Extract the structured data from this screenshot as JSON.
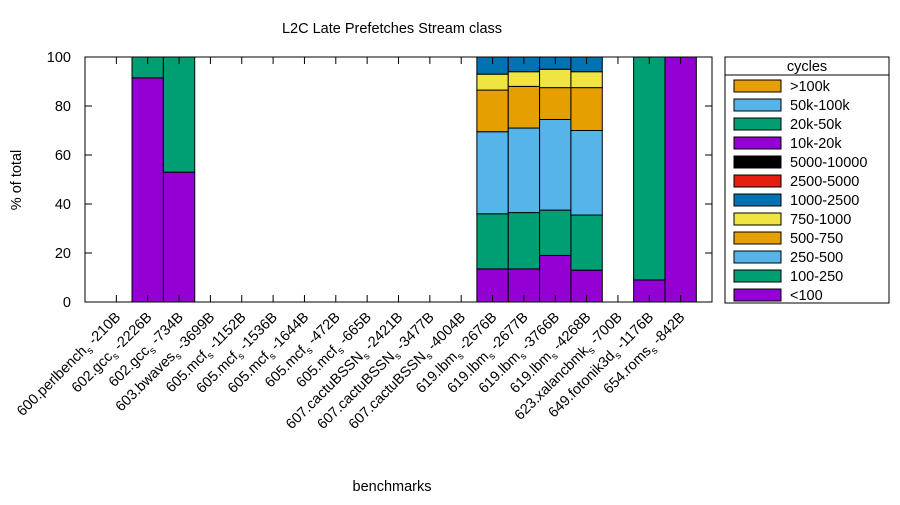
{
  "chart_data": {
    "type": "bar",
    "stacked": true,
    "title": "L2C Late Prefetches Stream class",
    "xlabel": "benchmarks",
    "ylabel": "% of total",
    "ylim": [
      0,
      100
    ],
    "yticks": [
      0,
      20,
      40,
      60,
      80,
      100
    ],
    "grid": false,
    "legend_position": "right",
    "legend_title": "cycles",
    "categories": [
      {
        "base": "600.perlbench",
        "sub": "s",
        "suffix": "-210B"
      },
      {
        "base": "602.gcc",
        "sub": "s",
        "suffix": "-2226B"
      },
      {
        "base": "602.gcc",
        "sub": "s",
        "suffix": "-734B"
      },
      {
        "base": "603.bwaves",
        "sub": "s",
        "suffix": "-3699B"
      },
      {
        "base": "605.mcf",
        "sub": "s",
        "suffix": "-1152B"
      },
      {
        "base": "605.mcf",
        "sub": "s",
        "suffix": "-1536B"
      },
      {
        "base": "605.mcf",
        "sub": "s",
        "suffix": "-1644B"
      },
      {
        "base": "605.mcf",
        "sub": "s",
        "suffix": "-472B"
      },
      {
        "base": "605.mcf",
        "sub": "s",
        "suffix": "-665B"
      },
      {
        "base": "607.cactuBSSN",
        "sub": "s",
        "suffix": "-2421B"
      },
      {
        "base": "607.cactuBSSN",
        "sub": "s",
        "suffix": "-3477B"
      },
      {
        "base": "607.cactuBSSN",
        "sub": "s",
        "suffix": "-4004B"
      },
      {
        "base": "619.lbm",
        "sub": "s",
        "suffix": "-2676B"
      },
      {
        "base": "619.lbm",
        "sub": "s",
        "suffix": "-2677B"
      },
      {
        "base": "619.lbm",
        "sub": "s",
        "suffix": "-3766B"
      },
      {
        "base": "619.lbm",
        "sub": "s",
        "suffix": "-4268B"
      },
      {
        "base": "623.xalancbmk",
        "sub": "s",
        "suffix": "-700B"
      },
      {
        "base": "649.fotonik3d",
        "sub": "s",
        "suffix": "-1176B"
      },
      {
        "base": "654.roms",
        "sub": "s",
        "suffix": "-842B"
      }
    ],
    "series": [
      {
        "name": "<100",
        "color": "#9400d3",
        "values": [
          0,
          91.5,
          53,
          0,
          0,
          0,
          0,
          0,
          0,
          0,
          0,
          0,
          13.5,
          13.5,
          19,
          13,
          0,
          9,
          100
        ]
      },
      {
        "name": "100-250",
        "color": "#009e73",
        "values": [
          0,
          8.5,
          47,
          0,
          0,
          0,
          0,
          0,
          0,
          0,
          0,
          0,
          22.5,
          23,
          18.5,
          22.5,
          0,
          0,
          0
        ]
      },
      {
        "name": "250-500",
        "color": "#56b4e9",
        "values": [
          0,
          0,
          0,
          0,
          0,
          0,
          0,
          0,
          0,
          0,
          0,
          0,
          33.5,
          34.5,
          37,
          34.5,
          0,
          0,
          0
        ]
      },
      {
        "name": "500-750",
        "color": "#e69f00",
        "values": [
          0,
          0,
          0,
          0,
          0,
          0,
          0,
          0,
          0,
          0,
          0,
          0,
          17,
          17,
          13,
          17.5,
          0,
          0,
          0
        ]
      },
      {
        "name": "750-1000",
        "color": "#f0e442",
        "values": [
          0,
          0,
          0,
          0,
          0,
          0,
          0,
          0,
          0,
          0,
          0,
          0,
          6.5,
          6,
          7.5,
          6.5,
          0,
          0,
          0
        ]
      },
      {
        "name": "1000-2500",
        "color": "#0072b2",
        "values": [
          0,
          0,
          0,
          0,
          0,
          0,
          0,
          0,
          0,
          0,
          0,
          0,
          7,
          6,
          5,
          6,
          0,
          0,
          0
        ]
      },
      {
        "name": "2500-5000",
        "color": "#e51e10",
        "values": [
          0,
          0,
          0,
          0,
          0,
          0,
          0,
          0,
          0,
          0,
          0,
          0,
          0,
          0,
          0,
          0,
          0,
          0,
          0
        ]
      },
      {
        "name": "5000-10000",
        "color": "#000000",
        "values": [
          0,
          0,
          0,
          0,
          0,
          0,
          0,
          0,
          0,
          0,
          0,
          0,
          0,
          0,
          0,
          0,
          0,
          0,
          0
        ]
      },
      {
        "name": "10k-20k",
        "color": "#9400d3",
        "values": [
          0,
          0,
          0,
          0,
          0,
          0,
          0,
          0,
          0,
          0,
          0,
          0,
          0,
          0,
          0,
          0,
          0,
          0,
          0
        ]
      },
      {
        "name": "20k-50k",
        "color": "#009e73",
        "values": [
          0,
          0,
          0,
          0,
          0,
          0,
          0,
          0,
          0,
          0,
          0,
          0,
          0,
          0,
          0,
          0,
          0,
          91,
          0
        ]
      },
      {
        "name": "50k-100k",
        "color": "#56b4e9",
        "values": [
          0,
          0,
          0,
          0,
          0,
          0,
          0,
          0,
          0,
          0,
          0,
          0,
          0,
          0,
          0,
          0,
          0,
          0,
          0
        ]
      },
      {
        "name": ">100k",
        "color": "#e69f00",
        "values": [
          0,
          0,
          0,
          0,
          0,
          0,
          0,
          0,
          0,
          0,
          0,
          0,
          0,
          0,
          0,
          0,
          0,
          0,
          0
        ]
      }
    ]
  }
}
